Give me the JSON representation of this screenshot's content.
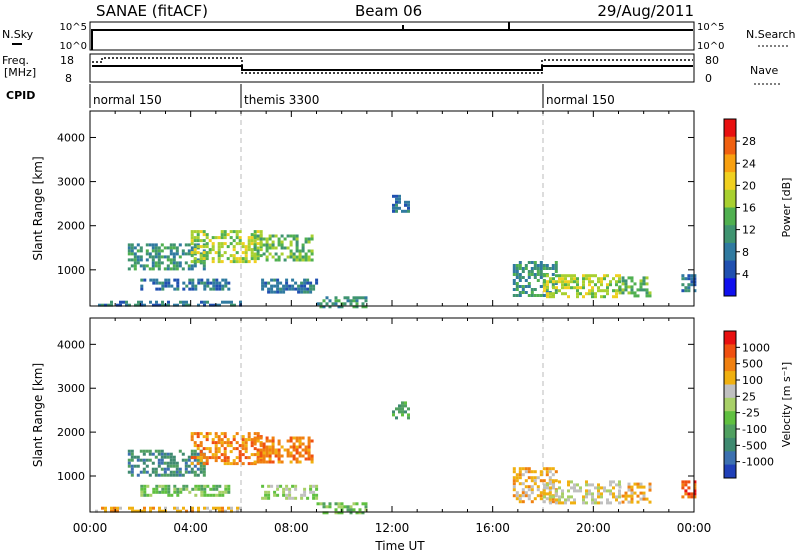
{
  "header": {
    "title": "SANAE (fitACF)",
    "beam": "Beam 06",
    "date": "29/Aug/2011"
  },
  "top_panels": {
    "nsky_label": "N.Sky",
    "nsky_ticks": [
      "10^5",
      "10^0"
    ],
    "nsearch_label": "N.Search",
    "nsearch_ticks": [
      "10^5",
      "10^0"
    ],
    "freq_label": "Freq.",
    "freq_unit": "[MHz]",
    "freq_ticks": [
      18,
      8
    ],
    "nave_label": "Nave",
    "nave_ticks": [
      80,
      0
    ],
    "cpid_label": "CPID",
    "cpid_segments": [
      {
        "label": "normal 150",
        "start_hour": 0,
        "end_hour": 6
      },
      {
        "label": "themis 3300",
        "start_hour": 6,
        "end_hour": 18
      },
      {
        "label": "normal 150",
        "start_hour": 18,
        "end_hour": 24
      }
    ]
  },
  "colorbars": {
    "power": {
      "label": "Power [dB]",
      "ticks": [
        "28",
        "24",
        "20",
        "16",
        "12",
        "8",
        "4"
      ],
      "colors": [
        "#1010ee",
        "#2050b0",
        "#307aa0",
        "#3f9470",
        "#50b050",
        "#a8d030",
        "#f0d020",
        "#f8a010",
        "#f06010",
        "#e81010"
      ]
    },
    "velocity": {
      "label": "Velocity [m s⁻¹]",
      "ticks": [
        "1000",
        "500",
        "100",
        "25",
        "-25",
        "-100",
        "-500",
        "-1000"
      ],
      "colors": [
        "#2040b8",
        "#3c70b0",
        "#3f8a70",
        "#50a060",
        "#60c040",
        "#a8d068",
        "#c0c0c0",
        "#f0b010",
        "#f08010",
        "#f05010",
        "#e81010"
      ]
    }
  },
  "chart_data": [
    {
      "type": "heatmap",
      "name": "power-panel",
      "ylabel": "Slant Range [km]",
      "ylim": [
        180,
        4600
      ],
      "xlim": [
        0,
        24
      ],
      "yticks": [
        "4000",
        "3000",
        "2000",
        "1000"
      ],
      "x_ticks": [
        "00:00",
        "04:00",
        "08:00",
        "12:00",
        "16:00",
        "20:00",
        "00:00"
      ],
      "regions": [
        {
          "t0": 1.5,
          "t1": 4.5,
          "r0": 1000,
          "r1": 1600,
          "level": 3
        },
        {
          "t0": 4.0,
          "t1": 6.8,
          "r0": 1200,
          "r1": 1900,
          "level": 5
        },
        {
          "t0": 6.5,
          "t1": 8.8,
          "r0": 1200,
          "r1": 1800,
          "level": 4
        },
        {
          "t0": 2.0,
          "t1": 5.5,
          "r0": 550,
          "r1": 800,
          "level": 2
        },
        {
          "t0": 6.8,
          "t1": 9.0,
          "r0": 500,
          "r1": 800,
          "level": 2
        },
        {
          "t0": 9.0,
          "t1": 11.0,
          "r0": 180,
          "r1": 400,
          "level": 3
        },
        {
          "t0": 0.2,
          "t1": 6.0,
          "r0": 180,
          "r1": 300,
          "level": 2
        },
        {
          "t0": 12.0,
          "t1": 12.7,
          "r0": 2300,
          "r1": 2700,
          "level": 2
        },
        {
          "t0": 16.8,
          "t1": 18.5,
          "r0": 400,
          "r1": 1200,
          "level": 3
        },
        {
          "t0": 18.0,
          "t1": 21.0,
          "r0": 400,
          "r1": 900,
          "level": 5
        },
        {
          "t0": 21.0,
          "t1": 22.2,
          "r0": 400,
          "r1": 850,
          "level": 4
        },
        {
          "t0": 23.5,
          "t1": 24.0,
          "r0": 500,
          "r1": 900,
          "level": 2
        }
      ]
    },
    {
      "type": "heatmap",
      "name": "velocity-panel",
      "ylabel": "Slant Range [km]",
      "ylim": [
        180,
        4600
      ],
      "xlim": [
        0,
        24
      ],
      "yticks": [
        "4000",
        "3000",
        "2000",
        "1000"
      ],
      "x_ticks": [
        "00:00",
        "04:00",
        "08:00",
        "12:00",
        "16:00",
        "20:00",
        "00:00"
      ],
      "xlabel": "Time UT",
      "regions": [
        {
          "t0": 1.5,
          "t1": 4.5,
          "r0": 1000,
          "r1": 1600,
          "level": 2
        },
        {
          "t0": 4.0,
          "t1": 6.8,
          "r0": 1300,
          "r1": 2000,
          "level": 8
        },
        {
          "t0": 6.5,
          "t1": 8.8,
          "r0": 1300,
          "r1": 1900,
          "level": 8
        },
        {
          "t0": 2.0,
          "t1": 5.5,
          "r0": 550,
          "r1": 800,
          "level": 4
        },
        {
          "t0": 6.8,
          "t1": 9.0,
          "r0": 500,
          "r1": 800,
          "level": 5
        },
        {
          "t0": 9.0,
          "t1": 11.0,
          "r0": 180,
          "r1": 400,
          "level": 4
        },
        {
          "t0": 0.2,
          "t1": 6.0,
          "r0": 180,
          "r1": 300,
          "level": 7
        },
        {
          "t0": 12.0,
          "t1": 12.7,
          "r0": 2300,
          "r1": 2700,
          "level": 3
        },
        {
          "t0": 16.8,
          "t1": 18.5,
          "r0": 400,
          "r1": 1200,
          "level": 7
        },
        {
          "t0": 18.0,
          "t1": 21.0,
          "r0": 400,
          "r1": 900,
          "level": 6
        },
        {
          "t0": 21.0,
          "t1": 22.2,
          "r0": 400,
          "r1": 850,
          "level": 7
        },
        {
          "t0": 23.5,
          "t1": 24.0,
          "r0": 500,
          "r1": 900,
          "level": 9
        }
      ]
    }
  ]
}
